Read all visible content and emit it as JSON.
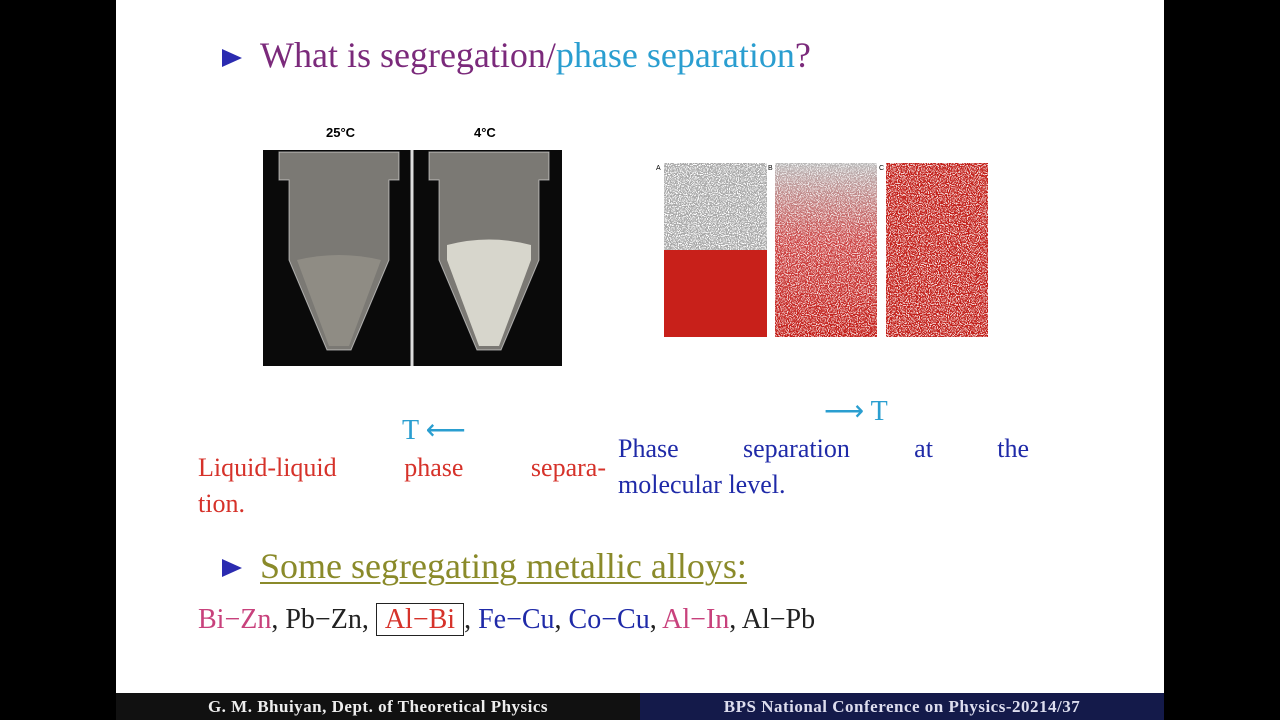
{
  "bullet1": {
    "part1": "What is segregation/",
    "part2": "phase separation",
    "part3": "?"
  },
  "figure_left": {
    "labels": [
      "25°C",
      "4°C"
    ]
  },
  "figure_right": {
    "panel_labels": [
      "A",
      "B",
      "C"
    ]
  },
  "arrow_left": "T ⟵",
  "arrow_right": "⟶ T",
  "caption_left": [
    "Liquid-liquid phase separa-",
    "tion."
  ],
  "caption_right": [
    "Phase separation at the",
    "molecular level."
  ],
  "bullet2": "Some segregating metallic alloys:",
  "alloys": {
    "items": [
      "Bi−Zn",
      "Pb−Zn",
      "Al−Bi",
      "Fe−Cu",
      "Co−Cu",
      "Al−In",
      "Al−Pb"
    ],
    "separator": ", "
  },
  "footer": {
    "left": "G. M. Bhuiyan, Dept. of Theoretical Physics",
    "right": "BPS National Conference on Physics-20214/37"
  }
}
